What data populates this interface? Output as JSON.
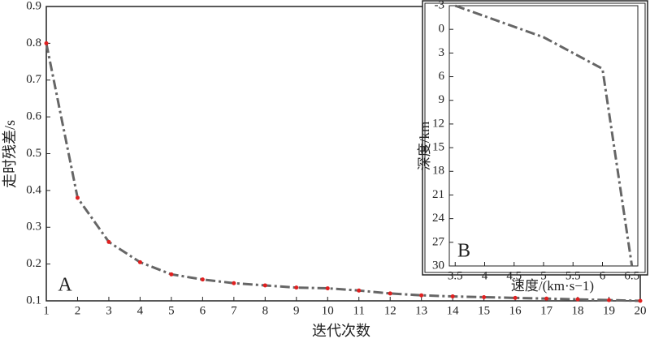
{
  "chart_data": [
    {
      "type": "line",
      "xlabel": "迭代次数",
      "ylabel": "走时残差/s",
      "annotation": "A",
      "x": [
        1,
        2,
        3,
        4,
        5,
        6,
        7,
        8,
        9,
        10,
        11,
        12,
        13,
        14,
        15,
        16,
        17,
        18,
        19,
        20
      ],
      "series": [
        {
          "color": "#666666",
          "marker_color": "#e02020",
          "values": [
            0.8,
            0.38,
            0.26,
            0.205,
            0.172,
            0.158,
            0.148,
            0.142,
            0.136,
            0.134,
            0.128,
            0.12,
            0.115,
            0.112,
            0.11,
            0.108,
            0.106,
            0.104,
            0.102,
            0.1
          ]
        }
      ],
      "xlim": [
        1,
        20
      ],
      "xticks": [
        1,
        2,
        3,
        4,
        5,
        6,
        7,
        8,
        9,
        10,
        11,
        12,
        13,
        14,
        15,
        16,
        17,
        18,
        19,
        20
      ],
      "ylim": [
        0.1,
        0.9
      ],
      "yticks": [
        0.1,
        0.2,
        0.3,
        0.4,
        0.5,
        0.6,
        0.7,
        0.8,
        0.9
      ]
    },
    {
      "type": "line",
      "xlabel": "速度/(km·s−1)",
      "ylabel": "深度/km",
      "annotation": "B",
      "x": [
        3.5,
        5,
        6,
        6.5
      ],
      "series": [
        {
          "color": "#666666",
          "values": [
            -3,
            1,
            5,
            30
          ]
        }
      ],
      "xlim": [
        3.4,
        6.6
      ],
      "xticks": [
        3.5,
        4,
        4.5,
        5,
        5.5,
        6,
        6.5
      ],
      "ylim": [
        30,
        -3
      ],
      "yticks": [
        -3,
        0,
        3,
        6,
        9,
        12,
        15,
        18,
        21,
        24,
        27,
        30
      ]
    }
  ]
}
